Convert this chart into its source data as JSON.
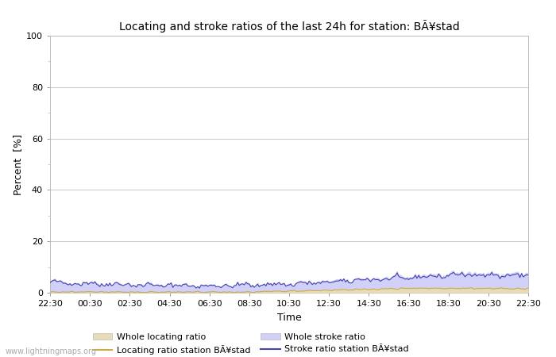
{
  "title": "Locating and stroke ratios of the last 24h for station: BÃ¥stad",
  "xlabel": "Time",
  "ylabel": "Percent  [%]",
  "ylim": [
    0,
    100
  ],
  "yticks": [
    0,
    20,
    40,
    60,
    80,
    100
  ],
  "yticks_minor": [
    10,
    30,
    50,
    70,
    90
  ],
  "xtick_labels": [
    "22:30",
    "00:30",
    "02:30",
    "04:30",
    "06:30",
    "08:30",
    "10:30",
    "12:30",
    "14:30",
    "16:30",
    "18:30",
    "20:30",
    "22:30"
  ],
  "background_color": "#ffffff",
  "plot_bg_color": "#ffffff",
  "grid_color": "#cccccc",
  "stroke_ratio_fill_color": "#d0d0f8",
  "locating_ratio_fill_color": "#e8dcb8",
  "stroke_ratio_line_color": "#4444aa",
  "locating_ratio_line_color": "#ccaa44",
  "watermark": "www.lightningmaps.org",
  "legend_labels": [
    "Whole locating ratio",
    "Locating ratio station BÃ¥stad",
    "Whole stroke ratio",
    "Stroke ratio station BÃ¥stad"
  ]
}
